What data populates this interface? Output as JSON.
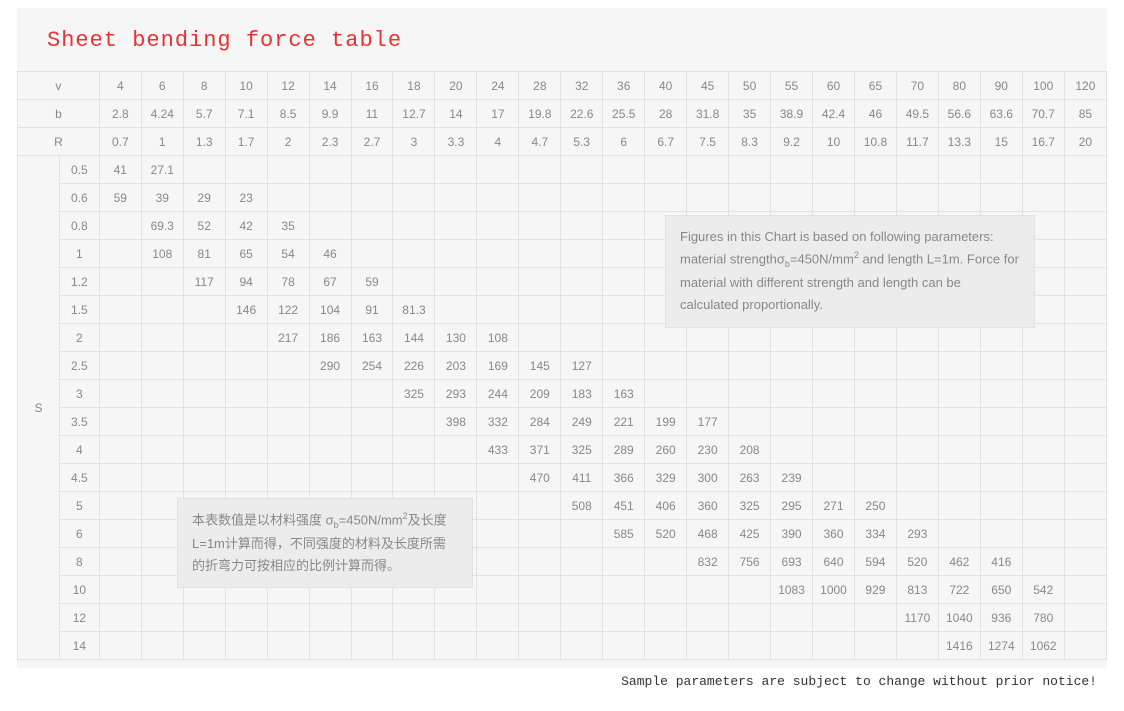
{
  "title": "Sheet bending force table",
  "headers": {
    "param_labels": [
      "v",
      "b",
      "R"
    ],
    "v": [
      "4",
      "6",
      "8",
      "10",
      "12",
      "14",
      "16",
      "18",
      "20",
      "24",
      "28",
      "32",
      "36",
      "40",
      "45",
      "50",
      "55",
      "60",
      "65",
      "70",
      "80",
      "90",
      "100",
      "120"
    ],
    "b": [
      "2.8",
      "4.24",
      "5.7",
      "7.1",
      "8.5",
      "9.9",
      "11",
      "12.7",
      "14",
      "17",
      "19.8",
      "22.6",
      "25.5",
      "28",
      "31.8",
      "35",
      "38.9",
      "42.4",
      "46",
      "49.5",
      "56.6",
      "63.6",
      "70.7",
      "85"
    ],
    "R": [
      "0.7",
      "1",
      "1.3",
      "1.7",
      "2",
      "2.3",
      "2.7",
      "3",
      "3.3",
      "4",
      "4.7",
      "5.3",
      "6",
      "6.7",
      "7.5",
      "8.3",
      "9.2",
      "10",
      "10.8",
      "11.7",
      "13.3",
      "15",
      "16.7",
      "20"
    ]
  },
  "s_label": "S",
  "s_values": [
    "0.5",
    "0.6",
    "0.8",
    "1",
    "1.2",
    "1.5",
    "2",
    "2.5",
    "3",
    "3.5",
    "4",
    "4.5",
    "5",
    "6",
    "8",
    "10",
    "12",
    "14"
  ],
  "rows": [
    [
      "41",
      "27.1",
      "",
      "",
      "",
      "",
      "",
      "",
      "",
      "",
      "",
      "",
      "",
      "",
      "",
      "",
      "",
      "",
      "",
      "",
      "",
      "",
      "",
      ""
    ],
    [
      "59",
      "39",
      "29",
      "23",
      "",
      "",
      "",
      "",
      "",
      "",
      "",
      "",
      "",
      "",
      "",
      "",
      "",
      "",
      "",
      "",
      "",
      "",
      "",
      ""
    ],
    [
      "",
      "69.3",
      "52",
      "42",
      "35",
      "",
      "",
      "",
      "",
      "",
      "",
      "",
      "",
      "",
      "",
      "",
      "",
      "",
      "",
      "",
      "",
      "",
      "",
      ""
    ],
    [
      "",
      "108",
      "81",
      "65",
      "54",
      "46",
      "",
      "",
      "",
      "",
      "",
      "",
      "",
      "",
      "",
      "",
      "",
      "",
      "",
      "",
      "",
      "",
      "",
      ""
    ],
    [
      "",
      "",
      "117",
      "94",
      "78",
      "67",
      "59",
      "",
      "",
      "",
      "",
      "",
      "",
      "",
      "",
      "",
      "",
      "",
      "",
      "",
      "",
      "",
      "",
      ""
    ],
    [
      "",
      "",
      "",
      "146",
      "122",
      "104",
      "91",
      "81.3",
      "",
      "",
      "",
      "",
      "",
      "",
      "",
      "",
      "",
      "",
      "",
      "",
      "",
      "",
      "",
      ""
    ],
    [
      "",
      "",
      "",
      "",
      "217",
      "186",
      "163",
      "144",
      "130",
      "108",
      "",
      "",
      "",
      "",
      "",
      "",
      "",
      "",
      "",
      "",
      "",
      "",
      "",
      ""
    ],
    [
      "",
      "",
      "",
      "",
      "",
      "290",
      "254",
      "226",
      "203",
      "169",
      "145",
      "127",
      "",
      "",
      "",
      "",
      "",
      "",
      "",
      "",
      "",
      "",
      "",
      ""
    ],
    [
      "",
      "",
      "",
      "",
      "",
      "",
      "",
      "325",
      "293",
      "244",
      "209",
      "183",
      "163",
      "",
      "",
      "",
      "",
      "",
      "",
      "",
      "",
      "",
      "",
      ""
    ],
    [
      "",
      "",
      "",
      "",
      "",
      "",
      "",
      "",
      "398",
      "332",
      "284",
      "249",
      "221",
      "199",
      "177",
      "",
      "",
      "",
      "",
      "",
      "",
      "",
      "",
      ""
    ],
    [
      "",
      "",
      "",
      "",
      "",
      "",
      "",
      "",
      "",
      "433",
      "371",
      "325",
      "289",
      "260",
      "230",
      "208",
      "",
      "",
      "",
      "",
      "",
      "",
      "",
      ""
    ],
    [
      "",
      "",
      "",
      "",
      "",
      "",
      "",
      "",
      "",
      "",
      "470",
      "411",
      "366",
      "329",
      "300",
      "263",
      "239",
      "",
      "",
      "",
      "",
      "",
      "",
      ""
    ],
    [
      "",
      "",
      "",
      "",
      "",
      "",
      "",
      "",
      "",
      "",
      "",
      "508",
      "451",
      "406",
      "360",
      "325",
      "295",
      "271",
      "250",
      "",
      "",
      "",
      "",
      ""
    ],
    [
      "",
      "",
      "",
      "",
      "",
      "",
      "",
      "",
      "",
      "",
      "",
      "",
      "585",
      "520",
      "468",
      "425",
      "390",
      "360",
      "334",
      "293",
      "",
      "",
      "",
      ""
    ],
    [
      "",
      "",
      "",
      "",
      "",
      "",
      "",
      "",
      "",
      "",
      "",
      "",
      "",
      "",
      "832",
      "756",
      "693",
      "640",
      "594",
      "520",
      "462",
      "416",
      "",
      ""
    ],
    [
      "",
      "",
      "",
      "",
      "",
      "",
      "",
      "",
      "",
      "",
      "",
      "",
      "",
      "",
      "",
      "",
      "1083",
      "1000",
      "929",
      "813",
      "722",
      "650",
      "542",
      ""
    ],
    [
      "",
      "",
      "",
      "",
      "",
      "",
      "",
      "",
      "",
      "",
      "",
      "",
      "",
      "",
      "",
      "",
      "",
      "",
      "",
      "1170",
      "1040",
      "936",
      "780",
      ""
    ],
    [
      "",
      "",
      "",
      "",
      "",
      "",
      "",
      "",
      "",
      "",
      "",
      "",
      "",
      "",
      "",
      "",
      "",
      "",
      "",
      "",
      "1416",
      "1274",
      "1062",
      ""
    ]
  ],
  "note_en_prefix": "Figures in this Chart is based on following parameters: material strengthσ",
  "note_en_sub": "b",
  "note_en_mid": "=450N/mm",
  "note_en_sup": "2",
  "note_en_suffix": " and length L=1m. Force for material with different strength and length can be calculated proportionally.",
  "note_cn_prefix": "本表数值是以材料强度 σ",
  "note_cn_sub": "b",
  "note_cn_mid": "=450N/mm",
  "note_cn_sup": "2",
  "note_cn_suffix": "及长度L=1m计算而得，不同强度的材料及长度所需的折弯力可按相应的比例计算而得。",
  "footer": "Sample parameters are subject to change without prior notice!",
  "colors": {
    "title": "#e63232",
    "bg": "#f6f6f6",
    "border": "#e2e2e2",
    "text": "#888888",
    "note_bg": "#ececec"
  }
}
